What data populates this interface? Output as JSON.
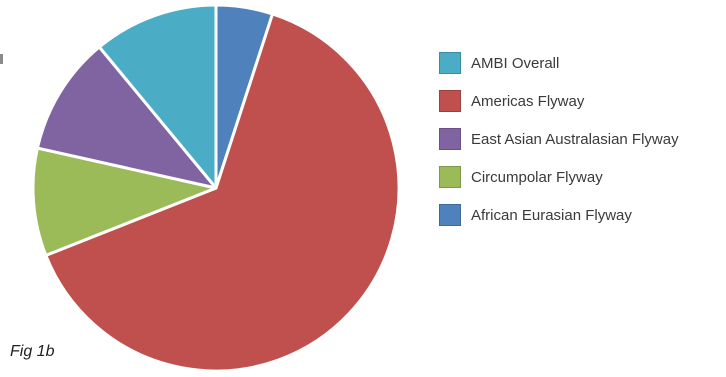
{
  "caption": "Fig 1b",
  "chart_data": {
    "type": "pie",
    "title": "",
    "legend_position": "right",
    "slices": [
      {
        "label": "AMBI Overall",
        "value": 11.0,
        "color": "#4BACC6"
      },
      {
        "label": "Americas Flyway",
        "value": 64.0,
        "color": "#C0504D"
      },
      {
        "label": "East Asian Australasian Flyway",
        "value": 10.5,
        "color": "#8064A2"
      },
      {
        "label": "Circumpolar Flyway",
        "value": 9.5,
        "color": "#9BBB59"
      },
      {
        "label": "African Eurasian Flyway",
        "value": 5.0,
        "color": "#4F81BD"
      }
    ],
    "draw_order": [
      4,
      1,
      3,
      2,
      0
    ]
  }
}
